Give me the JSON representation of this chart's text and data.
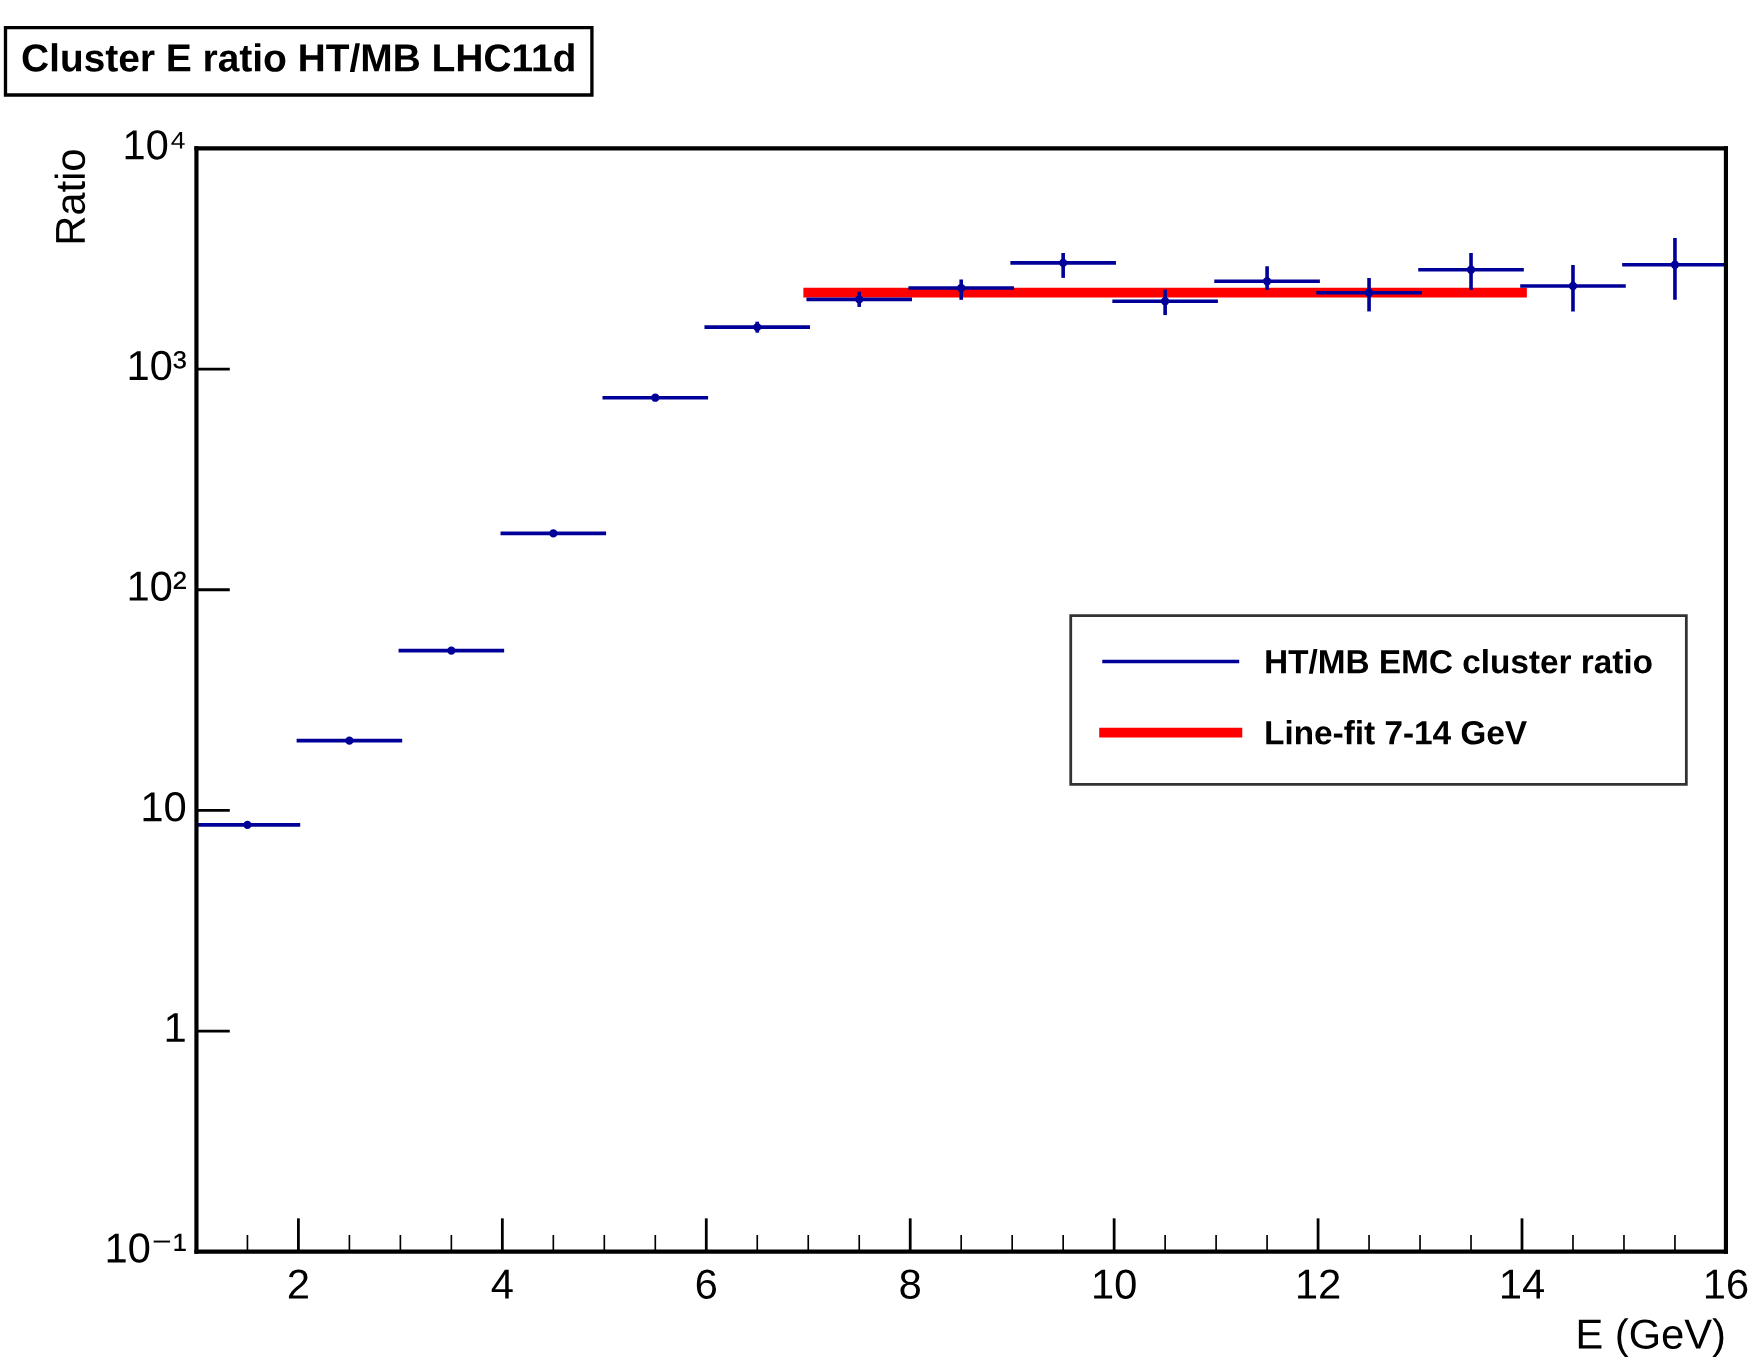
{
  "chart_data": {
    "type": "scatter",
    "title": "Cluster E ratio HT/MB LHC11d",
    "xlabel": "E (GeV)",
    "ylabel": "Ratio",
    "log": "y",
    "xlim": [
      1,
      16
    ],
    "xticks": [
      2,
      4,
      6,
      8,
      10,
      12,
      14,
      16
    ],
    "ylim": [
      0.1,
      10000
    ],
    "yticks": [
      {
        "value": 0.1,
        "label": "10⁻¹"
      },
      1,
      10,
      {
        "value": 100,
        "label": "10²"
      },
      {
        "value": 1000,
        "label": "10³"
      },
      {
        "value": 10000,
        "label": "10⁴"
      }
    ],
    "grid": false,
    "legend": "right",
    "series": [
      {
        "name": "HT/MB EMC cluster ratio",
        "color": "#000099",
        "x": [
          1.5,
          2.5,
          3.5,
          4.5,
          5.5,
          6.5,
          7.5,
          8.5,
          9.5,
          10.5,
          11.5,
          12.5,
          13.5,
          14.5,
          15.5
        ],
        "values": [
          8.6,
          20.7,
          53,
          180,
          742,
          1550,
          2070,
          2330,
          3030,
          2030,
          2500,
          2220,
          2820,
          2380,
          2970
        ],
        "xerrors": [
          0.5,
          0.5,
          0.5,
          0.5,
          0.5,
          0.5,
          0.5,
          0.5,
          0.5,
          0.5,
          0.5,
          0.5,
          0.5,
          0.5,
          0.5
        ],
        "errors": [
          null,
          null,
          null,
          null,
          null,
          60,
          [
            1950,
            2200
          ],
          [
            2100,
            2500
          ],
          [
            2640,
            3300
          ],
          [
            1790,
            2250
          ],
          [
            2330,
            2870
          ],
          [
            1860,
            2540
          ],
          [
            2330,
            3300
          ],
          [
            1860,
            2910
          ],
          [
            2100,
            3850
          ]
        ]
      },
      {
        "name": "Line-fit 7-14 GeV",
        "type": "line",
        "color": "#ff0000",
        "x": [
          7,
          14
        ],
        "values": [
          2220,
          2220
        ]
      }
    ]
  }
}
